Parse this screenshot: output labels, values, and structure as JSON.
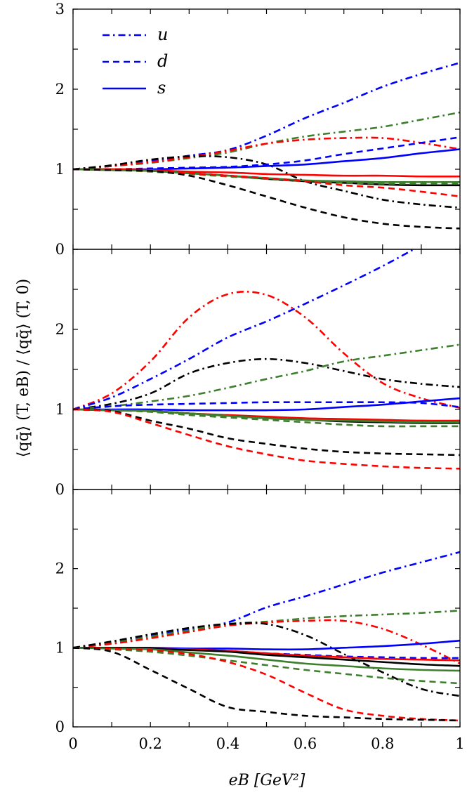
{
  "chart_data": {
    "type": "line",
    "xlabel": "eB [GeV²]",
    "ylabel": "⟨qq̄⟩ (T, eB) / ⟨qq̄⟩ (T, 0)",
    "xlim": [
      0,
      1
    ],
    "x_ticks": [
      "0",
      "0.2",
      "0.4",
      "0.6",
      "0.8",
      "1"
    ],
    "grid": false,
    "legend": {
      "placement": "top-left of top panel",
      "entries": [
        {
          "label": "u",
          "style": "dashdot"
        },
        {
          "label": "d",
          "style": "dashed"
        },
        {
          "label": "s",
          "style": "solid"
        }
      ]
    },
    "colors": {
      "black": "#000000",
      "red": "#ff0000",
      "green": "#3d7f2d",
      "blue": "#0000ff"
    },
    "x": [
      0,
      0.1,
      0.2,
      0.3,
      0.4,
      0.5,
      0.6,
      0.7,
      0.8,
      0.9,
      1.0
    ],
    "panels": [
      {
        "ylim": [
          0,
          3
        ],
        "y_ticks": [
          "0",
          "1",
          "2",
          "3"
        ],
        "series": [
          {
            "flavor": "u",
            "color": "blue",
            "values": [
              1,
              1.04,
              1.1,
              1.17,
              1.24,
              1.42,
              1.64,
              1.83,
              2.03,
              2.19,
              2.33
            ]
          },
          {
            "flavor": "u",
            "color": "green",
            "values": [
              1,
              1.04,
              1.08,
              1.14,
              1.21,
              1.32,
              1.41,
              1.47,
              1.53,
              1.62,
              1.71
            ]
          },
          {
            "flavor": "u",
            "color": "red",
            "values": [
              1,
              1.04,
              1.09,
              1.15,
              1.23,
              1.32,
              1.37,
              1.39,
              1.39,
              1.33,
              1.25
            ]
          },
          {
            "flavor": "u",
            "color": "black",
            "values": [
              1,
              1.05,
              1.12,
              1.16,
              1.15,
              1.06,
              0.85,
              0.73,
              0.62,
              0.56,
              0.52
            ]
          },
          {
            "flavor": "d",
            "color": "blue",
            "values": [
              1,
              1.0,
              1.01,
              1.02,
              1.03,
              1.06,
              1.11,
              1.19,
              1.26,
              1.33,
              1.4
            ]
          },
          {
            "flavor": "s",
            "color": "blue",
            "values": [
              1,
              1.0,
              1.0,
              1.01,
              1.02,
              1.04,
              1.06,
              1.1,
              1.14,
              1.2,
              1.25
            ]
          },
          {
            "flavor": "s",
            "color": "red",
            "values": [
              1,
              1.0,
              0.99,
              0.97,
              0.96,
              0.94,
              0.93,
              0.92,
              0.92,
              0.91,
              0.91
            ]
          },
          {
            "flavor": "s",
            "color": "black",
            "values": [
              1,
              0.99,
              0.98,
              0.95,
              0.92,
              0.88,
              0.85,
              0.83,
              0.81,
              0.8,
              0.8
            ]
          },
          {
            "flavor": "d",
            "color": "green",
            "values": [
              1,
              0.99,
              0.97,
              0.94,
              0.91,
              0.88,
              0.85,
              0.83,
              0.82,
              0.82,
              0.82
            ]
          },
          {
            "flavor": "s",
            "color": "green",
            "values": [
              1,
              0.99,
              0.98,
              0.95,
              0.92,
              0.89,
              0.86,
              0.85,
              0.84,
              0.84,
              0.84
            ]
          },
          {
            "flavor": "d",
            "color": "red",
            "values": [
              1,
              0.99,
              0.98,
              0.95,
              0.92,
              0.89,
              0.85,
              0.8,
              0.77,
              0.72,
              0.66
            ]
          },
          {
            "flavor": "d",
            "color": "black",
            "values": [
              1,
              0.99,
              0.98,
              0.92,
              0.8,
              0.66,
              0.52,
              0.4,
              0.32,
              0.28,
              0.26
            ]
          }
        ]
      },
      {
        "ylim": [
          0,
          3
        ],
        "y_ticks": [
          "0",
          "1",
          "2"
        ],
        "series": [
          {
            "flavor": "u",
            "color": "red",
            "values": [
              1,
              1.2,
              1.6,
              2.15,
              2.44,
              2.43,
              2.15,
              1.7,
              1.33,
              1.14,
              1.02
            ]
          },
          {
            "flavor": "u",
            "color": "blue",
            "values": [
              1,
              1.15,
              1.38,
              1.63,
              1.9,
              2.1,
              2.32,
              2.55,
              2.79,
              3.05,
              3.3
            ]
          },
          {
            "flavor": "u",
            "color": "black",
            "values": [
              1,
              1.07,
              1.2,
              1.45,
              1.58,
              1.63,
              1.58,
              1.48,
              1.38,
              1.32,
              1.28
            ]
          },
          {
            "flavor": "u",
            "color": "green",
            "values": [
              1,
              1.04,
              1.1,
              1.17,
              1.27,
              1.38,
              1.48,
              1.6,
              1.67,
              1.74,
              1.81
            ]
          },
          {
            "flavor": "d",
            "color": "blue",
            "values": [
              1,
              1.04,
              1.06,
              1.07,
              1.08,
              1.09,
              1.09,
              1.09,
              1.09,
              1.08,
              1.03
            ]
          },
          {
            "flavor": "s",
            "color": "blue",
            "values": [
              1,
              1.0,
              1.0,
              0.99,
              0.99,
              0.99,
              1.0,
              1.03,
              1.06,
              1.1,
              1.14
            ]
          },
          {
            "flavor": "s",
            "color": "red",
            "values": [
              1,
              0.99,
              0.98,
              0.95,
              0.93,
              0.91,
              0.89,
              0.88,
              0.87,
              0.86,
              0.86
            ]
          },
          {
            "flavor": "s",
            "color": "black",
            "values": [
              1,
              0.99,
              0.98,
              0.95,
              0.92,
              0.89,
              0.87,
              0.85,
              0.84,
              0.83,
              0.83
            ]
          },
          {
            "flavor": "s",
            "color": "green",
            "values": [
              1,
              0.99,
              0.98,
              0.95,
              0.92,
              0.89,
              0.87,
              0.86,
              0.85,
              0.84,
              0.84
            ]
          },
          {
            "flavor": "d",
            "color": "green",
            "values": [
              1,
              0.99,
              0.97,
              0.93,
              0.9,
              0.87,
              0.84,
              0.81,
              0.79,
              0.79,
              0.79
            ]
          },
          {
            "flavor": "d",
            "color": "black",
            "values": [
              1,
              0.98,
              0.86,
              0.76,
              0.64,
              0.57,
              0.51,
              0.47,
              0.45,
              0.44,
              0.43
            ]
          },
          {
            "flavor": "d",
            "color": "red",
            "values": [
              1,
              0.97,
              0.83,
              0.68,
              0.54,
              0.44,
              0.36,
              0.32,
              0.29,
              0.27,
              0.26
            ]
          }
        ]
      },
      {
        "ylim": [
          0,
          3
        ],
        "y_ticks": [
          "0",
          "1",
          "2"
        ],
        "series": [
          {
            "flavor": "u",
            "color": "blue",
            "values": [
              1,
              1.06,
              1.15,
              1.23,
              1.32,
              1.51,
              1.65,
              1.8,
              1.95,
              2.08,
              2.21
            ]
          },
          {
            "flavor": "u",
            "color": "green",
            "values": [
              1,
              1.06,
              1.14,
              1.22,
              1.3,
              1.33,
              1.37,
              1.4,
              1.42,
              1.44,
              1.47
            ]
          },
          {
            "flavor": "u",
            "color": "red",
            "values": [
              1,
              1.05,
              1.12,
              1.2,
              1.28,
              1.32,
              1.34,
              1.34,
              1.24,
              1.04,
              0.8
            ]
          },
          {
            "flavor": "u",
            "color": "black",
            "values": [
              1,
              1.08,
              1.17,
              1.25,
              1.3,
              1.3,
              1.16,
              0.92,
              0.69,
              0.48,
              0.39
            ]
          },
          {
            "flavor": "s",
            "color": "blue",
            "values": [
              1,
              1.0,
              1.0,
              0.99,
              0.99,
              0.98,
              0.98,
              1.0,
              1.02,
              1.05,
              1.09
            ]
          },
          {
            "flavor": "d",
            "color": "blue",
            "values": [
              1,
              1.0,
              0.99,
              0.98,
              0.96,
              0.93,
              0.91,
              0.89,
              0.88,
              0.87,
              0.87
            ]
          },
          {
            "flavor": "s",
            "color": "red",
            "values": [
              1,
              1.0,
              0.99,
              0.98,
              0.96,
              0.93,
              0.9,
              0.88,
              0.86,
              0.85,
              0.84
            ]
          },
          {
            "flavor": "s",
            "color": "black",
            "values": [
              1,
              1.0,
              0.99,
              0.97,
              0.95,
              0.91,
              0.88,
              0.85,
              0.82,
              0.79,
              0.77
            ]
          },
          {
            "flavor": "s",
            "color": "green",
            "values": [
              1,
              0.99,
              0.98,
              0.94,
              0.9,
              0.85,
              0.8,
              0.77,
              0.74,
              0.72,
              0.71
            ]
          },
          {
            "flavor": "d",
            "color": "green",
            "values": [
              1,
              0.98,
              0.95,
              0.9,
              0.84,
              0.78,
              0.72,
              0.67,
              0.62,
              0.58,
              0.55
            ]
          },
          {
            "flavor": "d",
            "color": "red",
            "values": [
              1,
              0.99,
              0.97,
              0.92,
              0.82,
              0.66,
              0.43,
              0.22,
              0.14,
              0.1,
              0.08
            ]
          },
          {
            "flavor": "d",
            "color": "black",
            "values": [
              1,
              0.95,
              0.72,
              0.48,
              0.25,
              0.19,
              0.14,
              0.12,
              0.1,
              0.09,
              0.08
            ]
          }
        ]
      }
    ]
  }
}
